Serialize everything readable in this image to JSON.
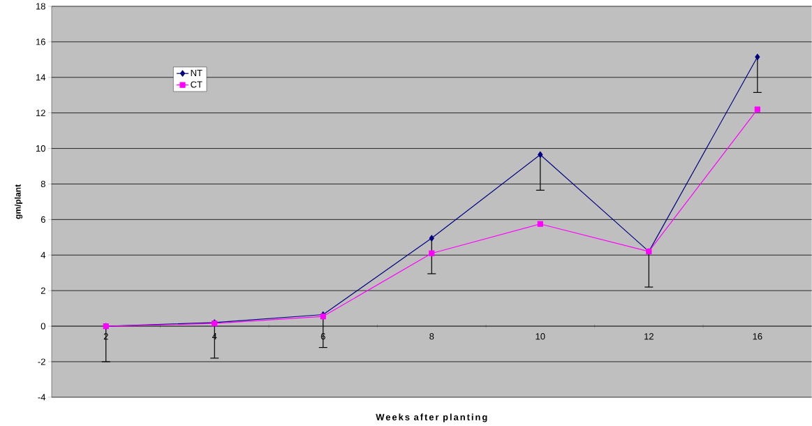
{
  "chart_data": {
    "type": "line",
    "xlabel": "Weeks after planting",
    "ylabel": "gm/plant",
    "categories": [
      "2",
      "4",
      "6",
      "8",
      "10",
      "12",
      "16"
    ],
    "series": [
      {
        "name": "NT",
        "color": "#000080",
        "marker": "diamond",
        "values": [
          0,
          0.2,
          0.65,
          4.95,
          9.65,
          4.2,
          15.15
        ],
        "errors": [
          [
            -2,
            0
          ],
          [
            -1.8,
            0.2
          ],
          [
            -1.2,
            0.65
          ],
          [
            2.95,
            4.95
          ],
          [
            7.65,
            9.65
          ],
          [
            2.2,
            4.2
          ],
          [
            13.15,
            15.15
          ]
        ]
      },
      {
        "name": "CT",
        "color": "#ff00ff",
        "marker": "square",
        "values": [
          0,
          0.15,
          0.55,
          4.1,
          5.75,
          4.2,
          12.2
        ]
      }
    ],
    "ylim": [
      -4,
      18
    ],
    "yticks": [
      -4,
      -2,
      0,
      2,
      4,
      6,
      8,
      10,
      12,
      14,
      16,
      18
    ],
    "grid": "y",
    "legend": "top left",
    "line_style": "solid"
  }
}
